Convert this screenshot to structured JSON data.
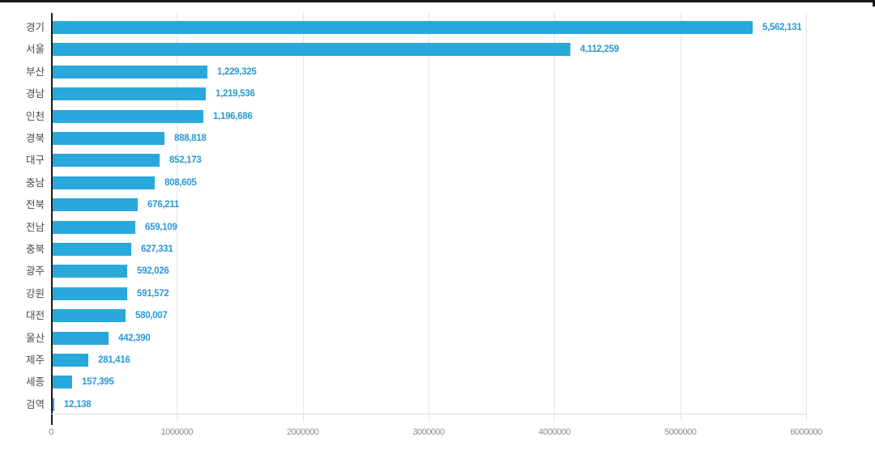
{
  "chart_data": {
    "type": "bar",
    "orientation": "horizontal",
    "title": "",
    "xlabel": "",
    "ylabel": "",
    "categories": [
      "경기",
      "서울",
      "부산",
      "경남",
      "인천",
      "경북",
      "대구",
      "충남",
      "전북",
      "전남",
      "충북",
      "광주",
      "강원",
      "대전",
      "울산",
      "제주",
      "세종",
      "검역"
    ],
    "values": [
      5562131,
      4112259,
      1229325,
      1219536,
      1196686,
      888818,
      852173,
      808605,
      676211,
      659109,
      627331,
      592026,
      591572,
      580007,
      442390,
      281416,
      157395,
      12138
    ],
    "value_labels": [
      "5,562,131",
      "4,112,259",
      "1,229,325",
      "1,219,536",
      "1,196,686",
      "888,818",
      "852,173",
      "808,605",
      "676,211",
      "659,109",
      "627,331",
      "592,026",
      "591,572",
      "580,007",
      "442,390",
      "281,416",
      "157,395",
      "12,138"
    ],
    "x_ticks": [
      "0",
      "1000000",
      "2000000",
      "3000000",
      "4000000",
      "5000000",
      "6000000"
    ],
    "xlim": [
      0,
      6000000
    ],
    "grid": "vertical",
    "legend": "none",
    "colors": {
      "bar": "#29a8db",
      "value_label": "#2a99d2",
      "category_label": "#4a4a4a",
      "tick_label": "#8c8c8c",
      "gridline": "#e4e4e4",
      "y_axis": "#1a1a1a",
      "x_axis": "#d9d9d9",
      "top_edge": "#15171a"
    }
  }
}
